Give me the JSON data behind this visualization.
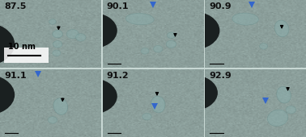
{
  "figsize": [
    3.78,
    1.7
  ],
  "dpi": 100,
  "ncols": 3,
  "nrows": 2,
  "bg_color": "#c8d8d4",
  "labels": [
    "87.5",
    "90.1",
    "90.9",
    "91.1",
    "91.2",
    "92.9"
  ],
  "label_fontsize": 8,
  "label_color": "#111111",
  "panel_bg": "#bccfcc",
  "scalebar_text": "10 nm",
  "scalebar_text_fontsize": 7,
  "triangle_color": "#3366CC",
  "particle_face": "#8aacaa",
  "particle_edge": "#6a8e8c",
  "corner_color": "#1a2020",
  "blue_tri_per_panel": {
    "1": [
      [
        0.5,
        0.07
      ]
    ],
    "2": [
      [
        0.46,
        0.07
      ]
    ],
    "3": [
      [
        0.38,
        0.07
      ]
    ],
    "4": [
      [
        0.52,
        0.55
      ]
    ],
    "5": [
      [
        0.6,
        0.47
      ]
    ]
  },
  "black_arrow_per_panel": {
    "0": [
      [
        0.58,
        0.42
      ]
    ],
    "1": [
      [
        0.72,
        0.52
      ]
    ],
    "2": [
      [
        0.76,
        0.4
      ]
    ],
    "3": [
      [
        0.62,
        0.46
      ]
    ],
    "4": [
      [
        0.54,
        0.37
      ]
    ],
    "5": [
      [
        0.82,
        0.3
      ]
    ]
  },
  "corner_circles": {
    "0": [
      -0.18,
      0.35,
      0.32
    ],
    "1": [
      -0.12,
      0.55,
      0.26
    ],
    "2": [
      -0.14,
      0.55,
      0.28
    ],
    "3": [
      -0.16,
      0.62,
      0.3
    ],
    "4": [
      -0.12,
      0.6,
      0.26
    ],
    "5": [
      -0.14,
      0.65,
      0.26
    ]
  },
  "particles": {
    "0": [
      [
        0.52,
        0.32,
        0.07,
        0.07,
        0,
        0.55
      ],
      [
        0.57,
        0.5,
        0.1,
        0.1,
        0,
        0.6
      ],
      [
        0.57,
        0.65,
        0.09,
        0.09,
        0,
        0.55
      ],
      [
        0.56,
        0.78,
        0.08,
        0.08,
        0,
        0.5
      ],
      [
        0.72,
        0.5,
        0.12,
        0.12,
        0,
        0.52
      ],
      [
        0.8,
        0.55,
        0.1,
        0.1,
        0,
        0.5
      ]
    ],
    "1": [
      [
        0.37,
        0.28,
        0.28,
        0.15,
        -5,
        0.55
      ],
      [
        0.68,
        0.52,
        0.08,
        0.08,
        0,
        0.55
      ],
      [
        0.68,
        0.65,
        0.1,
        0.1,
        0,
        0.55
      ],
      [
        0.55,
        0.72,
        0.09,
        0.09,
        0,
        0.5
      ],
      [
        0.42,
        0.75,
        0.08,
        0.08,
        0,
        0.48
      ]
    ],
    "2": [
      [
        0.4,
        0.28,
        0.26,
        0.16,
        -5,
        0.55
      ],
      [
        0.76,
        0.42,
        0.14,
        0.22,
        5,
        0.6
      ],
      [
        0.58,
        0.68,
        0.08,
        0.08,
        0,
        0.5
      ]
    ],
    "3": [
      [
        0.6,
        0.55,
        0.14,
        0.22,
        5,
        0.62
      ],
      [
        0.52,
        0.75,
        0.09,
        0.09,
        0,
        0.52
      ]
    ],
    "4": [
      [
        0.55,
        0.52,
        0.14,
        0.22,
        3,
        0.62
      ],
      [
        0.44,
        0.7,
        0.09,
        0.09,
        0,
        0.52
      ]
    ],
    "5": [
      [
        0.78,
        0.38,
        0.14,
        0.22,
        5,
        0.62
      ],
      [
        0.85,
        0.6,
        0.1,
        0.1,
        0,
        0.55
      ],
      [
        0.72,
        0.72,
        0.2,
        0.22,
        -15,
        0.58
      ]
    ]
  }
}
